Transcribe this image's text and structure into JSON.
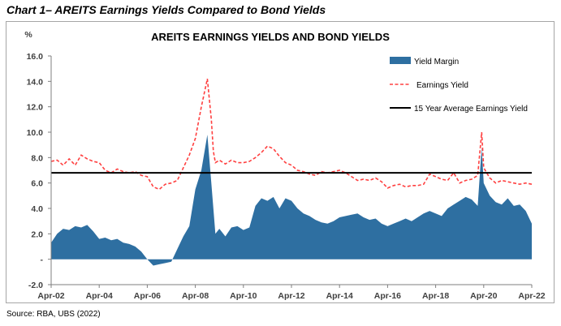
{
  "heading": "Chart 1– AREITS Earnings Yields Compared to Bond Yields",
  "source": "Source: RBA, UBS (2022)",
  "colors": {
    "yield_margin": "#2e6fa1",
    "earnings_yield": "#ff4040",
    "average": "#000000",
    "axis": "#7f7f7f",
    "frame": "#a6a6a6"
  },
  "chart_data": {
    "type": "area",
    "title": "AREITS EARNINGS YIELDS AND BOND YIELDS",
    "ylabel": "%",
    "ylim": [
      -2,
      16
    ],
    "y_ticks": [
      {
        "value": 16,
        "label": "16.0"
      },
      {
        "value": 14,
        "label": "14.0"
      },
      {
        "value": 12,
        "label": "12.0"
      },
      {
        "value": 10,
        "label": "10.0"
      },
      {
        "value": 8,
        "label": "8.0"
      },
      {
        "value": 6,
        "label": "6.0"
      },
      {
        "value": 4,
        "label": "4.0"
      },
      {
        "value": 2,
        "label": "2.0"
      },
      {
        "value": 0,
        "label": "-"
      },
      {
        "value": -2,
        "label": "-2.0"
      }
    ],
    "x_ticks": [
      "Apr-02",
      "Apr-04",
      "Apr-06",
      "Apr-08",
      "Apr-10",
      "Apr-12",
      "Apr-14",
      "Apr-16",
      "Apr-18",
      "Apr-20",
      "Apr-22"
    ],
    "x_range": [
      "Apr-02",
      "Apr-22"
    ],
    "grid": false,
    "legend_position": "top-right",
    "series": [
      {
        "name": "Yield Margin",
        "kind": "area",
        "x": [
          "2002-04",
          "2002-07",
          "2002-10",
          "2003-01",
          "2003-04",
          "2003-07",
          "2003-10",
          "2004-01",
          "2004-04",
          "2004-07",
          "2004-10",
          "2005-01",
          "2005-04",
          "2005-07",
          "2005-10",
          "2006-01",
          "2006-04",
          "2006-07",
          "2006-10",
          "2007-01",
          "2007-04",
          "2007-07",
          "2007-10",
          "2008-01",
          "2008-04",
          "2008-07",
          "2008-10",
          "2008-12",
          "2009-01",
          "2009-02",
          "2009-04",
          "2009-07",
          "2009-10",
          "2010-01",
          "2010-04",
          "2010-07",
          "2010-10",
          "2011-01",
          "2011-04",
          "2011-07",
          "2011-10",
          "2012-01",
          "2012-04",
          "2012-07",
          "2012-10",
          "2013-01",
          "2013-04",
          "2013-07",
          "2013-10",
          "2014-01",
          "2014-04",
          "2014-07",
          "2014-10",
          "2015-01",
          "2015-04",
          "2015-07",
          "2015-10",
          "2016-01",
          "2016-04",
          "2016-07",
          "2016-10",
          "2017-01",
          "2017-04",
          "2017-07",
          "2017-10",
          "2018-01",
          "2018-04",
          "2018-07",
          "2018-10",
          "2019-01",
          "2019-04",
          "2019-07",
          "2019-10",
          "2020-01",
          "2020-03",
          "2020-04",
          "2020-07",
          "2020-10",
          "2021-01",
          "2021-04",
          "2021-07",
          "2021-10",
          "2022-01",
          "2022-04"
        ],
        "values": [
          1.3,
          2.0,
          2.4,
          2.3,
          2.6,
          2.5,
          2.7,
          2.2,
          1.6,
          1.7,
          1.5,
          1.6,
          1.3,
          1.2,
          1.0,
          0.6,
          0.0,
          -0.5,
          -0.4,
          -0.3,
          -0.2,
          0.8,
          1.8,
          2.6,
          5.5,
          7.0,
          9.8,
          6.0,
          4.0,
          2.0,
          2.4,
          1.8,
          2.5,
          2.6,
          2.3,
          2.5,
          4.2,
          4.8,
          4.6,
          4.9,
          4.0,
          4.8,
          4.6,
          4.0,
          3.6,
          3.4,
          3.1,
          2.9,
          2.8,
          3.0,
          3.3,
          3.4,
          3.5,
          3.6,
          3.3,
          3.1,
          3.2,
          2.8,
          2.6,
          2.8,
          3.0,
          3.2,
          3.0,
          3.3,
          3.6,
          3.8,
          3.6,
          3.4,
          4.0,
          4.3,
          4.6,
          4.9,
          4.7,
          4.2,
          8.8,
          6.0,
          5.0,
          4.5,
          4.3,
          4.8,
          4.2,
          4.3,
          3.8,
          2.8
        ]
      },
      {
        "name": "Earnings Yield",
        "kind": "dashed-line",
        "x": [
          "2002-04",
          "2002-07",
          "2002-10",
          "2003-01",
          "2003-04",
          "2003-07",
          "2003-10",
          "2004-01",
          "2004-04",
          "2004-07",
          "2004-10",
          "2005-01",
          "2005-04",
          "2005-07",
          "2005-10",
          "2006-01",
          "2006-04",
          "2006-07",
          "2006-10",
          "2007-01",
          "2007-04",
          "2007-07",
          "2007-10",
          "2008-01",
          "2008-04",
          "2008-07",
          "2008-10",
          "2008-12",
          "2009-01",
          "2009-02",
          "2009-04",
          "2009-07",
          "2009-10",
          "2010-01",
          "2010-04",
          "2010-07",
          "2010-10",
          "2011-01",
          "2011-04",
          "2011-07",
          "2011-10",
          "2012-01",
          "2012-04",
          "2012-07",
          "2012-10",
          "2013-01",
          "2013-04",
          "2013-07",
          "2013-10",
          "2014-01",
          "2014-04",
          "2014-07",
          "2014-10",
          "2015-01",
          "2015-04",
          "2015-07",
          "2015-10",
          "2016-01",
          "2016-04",
          "2016-07",
          "2016-10",
          "2017-01",
          "2017-04",
          "2017-07",
          "2017-10",
          "2018-01",
          "2018-04",
          "2018-07",
          "2018-10",
          "2019-01",
          "2019-04",
          "2019-07",
          "2019-10",
          "2020-01",
          "2020-03",
          "2020-04",
          "2020-07",
          "2020-10",
          "2021-01",
          "2021-04",
          "2021-07",
          "2021-10",
          "2022-01",
          "2022-04"
        ],
        "values": [
          7.7,
          7.8,
          7.4,
          7.9,
          7.4,
          8.2,
          7.9,
          7.7,
          7.6,
          7.0,
          6.8,
          7.1,
          6.9,
          6.8,
          6.9,
          6.6,
          6.5,
          5.7,
          5.5,
          5.9,
          6.0,
          6.2,
          7.2,
          8.2,
          9.5,
          12.0,
          14.2,
          11.0,
          8.5,
          7.6,
          7.8,
          7.5,
          7.8,
          7.6,
          7.6,
          7.7,
          8.0,
          8.4,
          8.9,
          8.7,
          8.1,
          7.6,
          7.4,
          7.0,
          6.9,
          6.7,
          6.6,
          6.9,
          6.8,
          6.9,
          7.0,
          6.8,
          6.5,
          6.2,
          6.3,
          6.2,
          6.4,
          6.1,
          5.6,
          5.8,
          5.9,
          5.7,
          5.8,
          5.8,
          5.9,
          6.7,
          6.5,
          6.3,
          6.2,
          6.8,
          6.0,
          6.2,
          6.3,
          6.6,
          10.0,
          7.2,
          6.4,
          6.0,
          6.2,
          6.1,
          6.0,
          5.9,
          6.0,
          5.9
        ]
      },
      {
        "name": "15 Year Average Earnings Yield",
        "kind": "solid-line",
        "values": [
          6.8
        ]
      }
    ]
  }
}
